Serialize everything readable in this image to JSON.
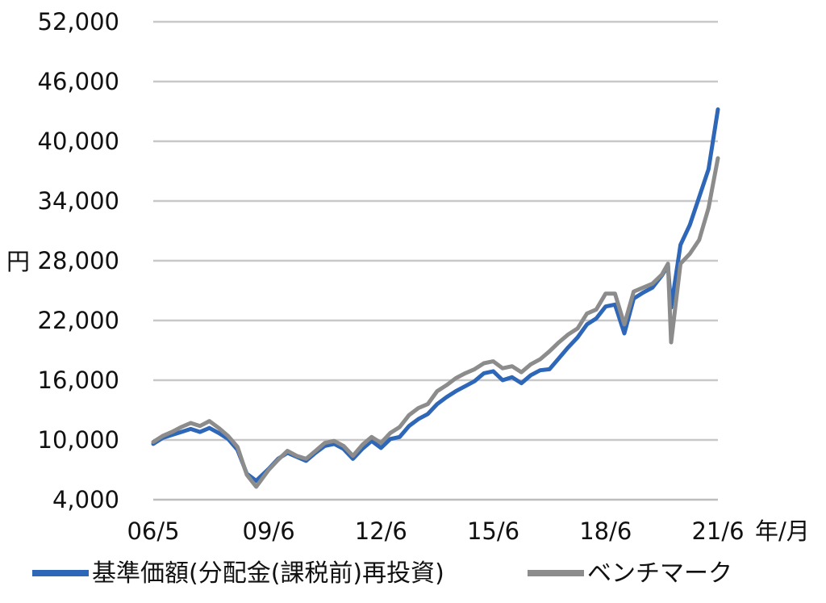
{
  "chart_data": {
    "type": "line",
    "title": "",
    "xlabel": "",
    "ylabel": "円",
    "x_unit_label": "年/月",
    "ylim": [
      4000,
      52000
    ],
    "yticks": [
      4000,
      10000,
      16000,
      22000,
      28000,
      34000,
      40000,
      46000,
      52000
    ],
    "ytick_labels": [
      "4,000",
      "10,000",
      "16,000",
      "22,000",
      "28,000",
      "34,000",
      "40,000",
      "46,000",
      "52,000"
    ],
    "xlim": [
      "2006-05",
      "2021-06"
    ],
    "xtick_labels": [
      "06/5",
      "09/6",
      "12/6",
      "15/6",
      "18/6",
      "21/6"
    ],
    "xticks": [
      "2006-05",
      "2009-06",
      "2012-06",
      "2015-06",
      "2018-06",
      "2021-06"
    ],
    "grid": "horizontal",
    "legend_position": "bottom",
    "x": [
      "2006-05",
      "2006-08",
      "2006-11",
      "2007-02",
      "2007-05",
      "2007-08",
      "2007-11",
      "2008-02",
      "2008-05",
      "2008-08",
      "2008-11",
      "2009-02",
      "2009-06",
      "2009-09",
      "2009-12",
      "2010-03",
      "2010-06",
      "2010-09",
      "2010-12",
      "2011-03",
      "2011-06",
      "2011-09",
      "2011-12",
      "2012-03",
      "2012-06",
      "2012-09",
      "2012-12",
      "2013-03",
      "2013-06",
      "2013-09",
      "2013-12",
      "2014-03",
      "2014-06",
      "2014-09",
      "2014-12",
      "2015-03",
      "2015-06",
      "2015-09",
      "2015-12",
      "2016-03",
      "2016-06",
      "2016-09",
      "2016-12",
      "2017-03",
      "2017-06",
      "2017-09",
      "2017-12",
      "2018-03",
      "2018-06",
      "2018-09",
      "2018-12",
      "2019-03",
      "2019-06",
      "2019-09",
      "2019-12",
      "2020-02",
      "2020-03",
      "2020-06",
      "2020-09",
      "2020-12",
      "2021-03",
      "2021-06"
    ],
    "series": [
      {
        "name": "基準価額(分配金(課税前)再投資)",
        "color": "#2e67b8",
        "values": [
          9600,
          10200,
          10500,
          10800,
          11100,
          10800,
          11200,
          10700,
          10100,
          9000,
          6600,
          5900,
          7100,
          8100,
          8700,
          8300,
          7900,
          8700,
          9400,
          9600,
          9100,
          8100,
          9100,
          9900,
          9200,
          10100,
          10300,
          11400,
          12100,
          12600,
          13600,
          14300,
          14900,
          15400,
          15900,
          16700,
          16900,
          16000,
          16300,
          15700,
          16500,
          17000,
          17100,
          18200,
          19300,
          20300,
          21600,
          22200,
          23400,
          23600,
          20700,
          24200,
          24800,
          25300,
          26500,
          27500,
          23300,
          29600,
          31600,
          34400,
          37200,
          43200
        ]
      },
      {
        "name": "ベンチマーク",
        "color": "#8c8c8c",
        "values": [
          9800,
          10400,
          10800,
          11300,
          11700,
          11400,
          11900,
          11200,
          10400,
          9300,
          6500,
          5300,
          7000,
          8000,
          8900,
          8400,
          8100,
          8900,
          9700,
          9900,
          9400,
          8400,
          9500,
          10300,
          9700,
          10700,
          11300,
          12500,
          13200,
          13600,
          14900,
          15500,
          16200,
          16700,
          17100,
          17700,
          17900,
          17200,
          17400,
          16800,
          17600,
          18100,
          18900,
          19800,
          20600,
          21200,
          22700,
          23100,
          24700,
          24700,
          21600,
          24900,
          25300,
          25700,
          26600,
          27700,
          19800,
          27700,
          28700,
          30100,
          33300,
          38300
        ]
      }
    ]
  }
}
